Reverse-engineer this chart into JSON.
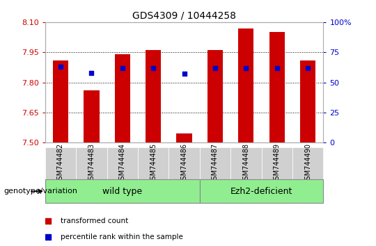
{
  "title": "GDS4309 / 10444258",
  "samples": [
    "GSM744482",
    "GSM744483",
    "GSM744484",
    "GSM744485",
    "GSM744486",
    "GSM744487",
    "GSM744488",
    "GSM744489",
    "GSM744490"
  ],
  "transformed_count": [
    7.91,
    7.76,
    7.94,
    7.96,
    7.545,
    7.96,
    8.07,
    8.05,
    7.91
  ],
  "percentile_rank": [
    63,
    58,
    62,
    62,
    57,
    62,
    62,
    62,
    62
  ],
  "ylim_left": [
    7.5,
    8.1
  ],
  "ylim_right": [
    0,
    100
  ],
  "yticks_left": [
    7.5,
    7.65,
    7.8,
    7.95,
    8.1
  ],
  "yticks_right": [
    0,
    25,
    50,
    75,
    100
  ],
  "bar_color": "#cc0000",
  "dot_color": "#0000cc",
  "bar_width": 0.5,
  "left_tick_color": "#cc0000",
  "right_tick_color": "#0000cc",
  "legend_items": [
    "transformed count",
    "percentile rank within the sample"
  ],
  "plot_bg_color": "#ffffff",
  "genotype_label": "genotype/variation",
  "group1_label": "wild type",
  "group2_label": "Ezh2-deficient",
  "group1_indices": [
    0,
    1,
    2,
    3,
    4
  ],
  "group2_indices": [
    5,
    6,
    7,
    8
  ],
  "group_bg_color": "#90ee90",
  "sample_box_color": "#d0d0d0",
  "title_fontsize": 10,
  "tick_fontsize": 8,
  "sample_fontsize": 7,
  "group_fontsize": 9
}
